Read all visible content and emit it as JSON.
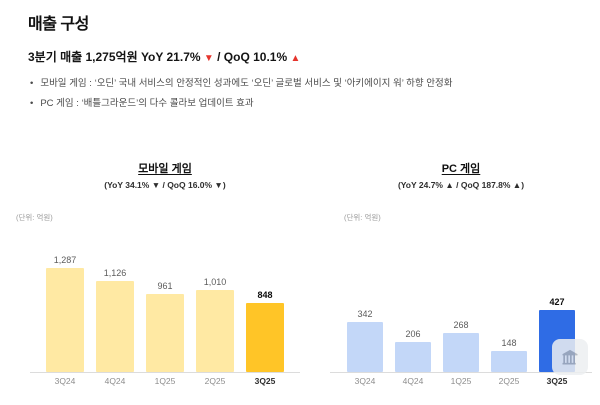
{
  "header": {
    "title": "매출 구성"
  },
  "summary": {
    "prefix": "3분기 매출 1,275억원 YoY 21.7% ",
    "down_arrow": "▼",
    "mid": " / QoQ 10.1% ",
    "up_arrow": "▲",
    "bullets": [
      "모바일 게임 : ‘오딘’ 국내 서비스의 안정적인 성과에도 ‘오딘’ 글로벌 서비스 및 ‘아키에이지 워’ 하향 안정화",
      "PC 게임 : ‘배틀그라운드’의 다수 콜라보 업데이트 효과"
    ]
  },
  "colors": {
    "arrow_red": "#e5342c",
    "axis_line": "#dcdcdc"
  },
  "icons": {
    "watermark": "building-icon"
  },
  "chart_data": [
    {
      "type": "bar",
      "title": "모바일 게임",
      "subtitle": "(YoY 34.1% ▼ / QoQ 16.0% ▼)",
      "unit_label": "(단위: 억원)",
      "categories": [
        "3Q24",
        "4Q24",
        "1Q25",
        "2Q25",
        "3Q25"
      ],
      "values": [
        1287,
        1126,
        961,
        1010,
        848
      ],
      "value_labels": [
        "1,287",
        "1,126",
        "961",
        "1,010",
        "848"
      ],
      "highlight_index": 4,
      "bar_color": "#ffe9a3",
      "highlight_color": "#ffc527",
      "xlabel": "",
      "ylabel": "",
      "ylim": [
        0,
        1400
      ],
      "grid": false,
      "legend": null
    },
    {
      "type": "bar",
      "title": "PC 게임",
      "subtitle": "(YoY 24.7% ▲ / QoQ 187.8% ▲)",
      "unit_label": "(단위: 억원)",
      "categories": [
        "3Q24",
        "4Q24",
        "1Q25",
        "2Q25",
        "3Q25"
      ],
      "values": [
        342,
        206,
        268,
        148,
        427
      ],
      "value_labels": [
        "342",
        "206",
        "268",
        "148",
        "427"
      ],
      "highlight_index": 4,
      "bar_color": "#c3d7f8",
      "highlight_color": "#2f6ce5",
      "xlabel": "",
      "ylabel": "",
      "ylim": [
        0,
        500
      ],
      "grid": false,
      "legend": null
    }
  ]
}
